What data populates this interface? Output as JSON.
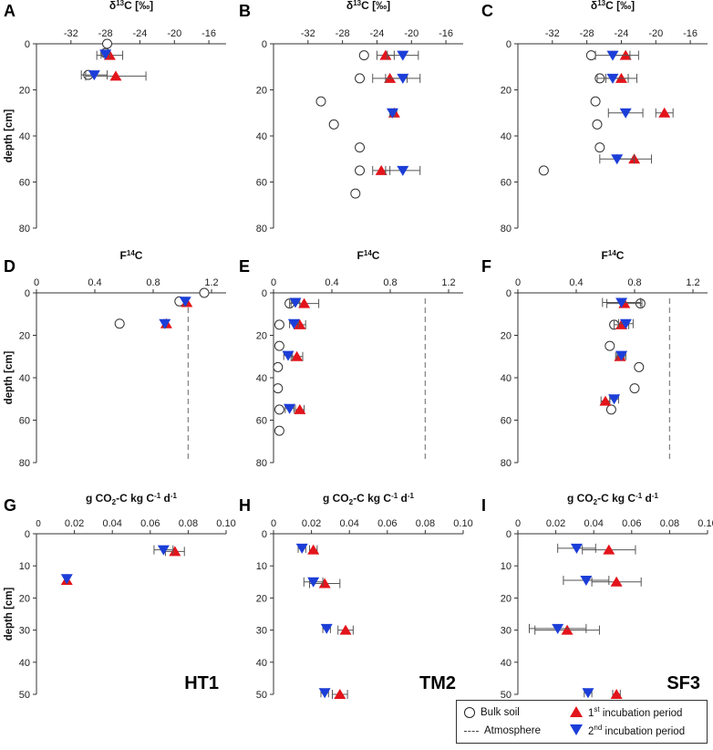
{
  "colors": {
    "bulk_soil": "#ffffff",
    "incubation1": "#e3141b",
    "incubation2": "#1c3ed8",
    "axis": "#333333",
    "atmosphere": "#888888"
  },
  "legend": {
    "bulk_soil": "Bulk soil",
    "atmosphere": "Atmosphere",
    "incubation1_pre": "1",
    "incubation1_sup": "st",
    "incubation1_post": " incubation period",
    "incubation2_pre": "2",
    "incubation2_sup": "nd",
    "incubation2_post": " incubation period"
  },
  "chart_data": [
    {
      "id": "A",
      "panel_label": "A",
      "type": "scatter",
      "title": "δ13C [‰]",
      "title_main": "δ",
      "title_sup": "13",
      "title_rest": "C [‰]",
      "xlim": [
        -36,
        -14
      ],
      "xticks": [
        -32,
        -28,
        -24,
        -20,
        -16
      ],
      "ylim": [
        80,
        0
      ],
      "yticks": [
        0,
        20,
        40,
        60,
        80
      ],
      "ylabel": "depth [cm]",
      "site_label": "",
      "bulk": [
        {
          "x": -27.8,
          "y": 0
        },
        {
          "x": -28.0,
          "y": 4
        },
        {
          "x": -30.0,
          "y": 13.5
        }
      ],
      "inc1": [
        {
          "x": -27.5,
          "y": 5,
          "err": 1.5
        },
        {
          "x": -26.8,
          "y": 14,
          "err": 3.5
        }
      ],
      "inc2": [
        {
          "x": -28.0,
          "y": 4.5,
          "err": 0.5
        },
        {
          "x": -29.3,
          "y": 13.5,
          "err": 1.5
        }
      ]
    },
    {
      "id": "B",
      "panel_label": "B",
      "type": "scatter",
      "title": "δ13C [‰]",
      "title_main": "δ",
      "title_sup": "13",
      "title_rest": "C [‰]",
      "xlim": [
        -36,
        -14
      ],
      "xticks": [
        -32,
        -28,
        -24,
        -20,
        -16
      ],
      "ylim": [
        80,
        0
      ],
      "yticks": [
        0,
        20,
        40,
        60,
        80
      ],
      "ylabel": "",
      "site_label": "",
      "bulk": [
        {
          "x": -25.5,
          "y": 5
        },
        {
          "x": -26.0,
          "y": 15
        },
        {
          "x": -30.5,
          "y": 25
        },
        {
          "x": -29.0,
          "y": 35
        },
        {
          "x": -26.0,
          "y": 45
        },
        {
          "x": -26.0,
          "y": 55
        },
        {
          "x": -26.5,
          "y": 65
        }
      ],
      "inc1": [
        {
          "x": -23.0,
          "y": 5,
          "err": 1
        },
        {
          "x": -22.5,
          "y": 15,
          "err": 2
        },
        {
          "x": -22.0,
          "y": 30,
          "err": 0.3
        },
        {
          "x": -23.5,
          "y": 55,
          "err": 1
        }
      ],
      "inc2": [
        {
          "x": -21.0,
          "y": 5,
          "err": 1.8
        },
        {
          "x": -21.0,
          "y": 15,
          "err": 2
        },
        {
          "x": -22.2,
          "y": 30,
          "err": 0.3
        },
        {
          "x": -21.0,
          "y": 55,
          "err": 2
        }
      ]
    },
    {
      "id": "C",
      "panel_label": "C",
      "type": "scatter",
      "title": "δ13C [‰]",
      "title_main": "δ",
      "title_sup": "13",
      "title_rest": "C [‰]",
      "xlim": [
        -36,
        -14
      ],
      "xticks": [
        -32,
        -28,
        -24,
        -20,
        -16
      ],
      "ylim": [
        80,
        0
      ],
      "yticks": [
        0,
        20,
        40,
        60,
        80
      ],
      "ylabel": "",
      "site_label": "",
      "bulk": [
        {
          "x": -27.5,
          "y": 5
        },
        {
          "x": -26.5,
          "y": 15
        },
        {
          "x": -27.0,
          "y": 25
        },
        {
          "x": -26.8,
          "y": 35
        },
        {
          "x": -26.5,
          "y": 45
        },
        {
          "x": -33.0,
          "y": 55
        }
      ],
      "inc1": [
        {
          "x": -23.5,
          "y": 5,
          "err": 1.5
        },
        {
          "x": -24.0,
          "y": 15,
          "err": 1.8
        },
        {
          "x": -19.0,
          "y": 30,
          "err": 1
        },
        {
          "x": -22.5,
          "y": 50,
          "err": 2
        }
      ],
      "inc2": [
        {
          "x": -25.0,
          "y": 5,
          "err": 2
        },
        {
          "x": -25.0,
          "y": 15,
          "err": 1.8
        },
        {
          "x": -23.5,
          "y": 30,
          "err": 2
        },
        {
          "x": -24.5,
          "y": 50,
          "err": 2
        }
      ]
    },
    {
      "id": "D",
      "panel_label": "D",
      "type": "scatter",
      "title": "F14C",
      "title_main": "F",
      "title_sup": "14",
      "title_rest": "C",
      "xlim": [
        0,
        1.3
      ],
      "xticks": [
        0,
        0.4,
        0.8,
        1.2
      ],
      "ylim": [
        80,
        0
      ],
      "yticks": [
        0,
        20,
        40,
        60,
        80
      ],
      "ylabel": "depth [cm]",
      "atmosphere": 1.04,
      "site_label": "",
      "bulk": [
        {
          "x": 1.15,
          "y": 0
        },
        {
          "x": 0.98,
          "y": 4
        },
        {
          "x": 0.57,
          "y": 14.5
        }
      ],
      "inc1": [
        {
          "x": 1.03,
          "y": 4.5,
          "err": 0.01
        },
        {
          "x": 0.89,
          "y": 14.5,
          "err": 0.01
        }
      ],
      "inc2": [
        {
          "x": 1.02,
          "y": 4,
          "err": 0.01
        },
        {
          "x": 0.88,
          "y": 14.5,
          "err": 0.01
        }
      ]
    },
    {
      "id": "E",
      "panel_label": "E",
      "type": "scatter",
      "title": "F14C",
      "title_main": "F",
      "title_sup": "14",
      "title_rest": "C",
      "xlim": [
        0,
        1.3
      ],
      "xticks": [
        0,
        0.4,
        0.8,
        1.2
      ],
      "ylim": [
        80,
        0
      ],
      "yticks": [
        0,
        20,
        40,
        60,
        80
      ],
      "ylabel": "",
      "atmosphere": 1.04,
      "site_label": "",
      "bulk": [
        {
          "x": 0.11,
          "y": 5
        },
        {
          "x": 0.04,
          "y": 15
        },
        {
          "x": 0.04,
          "y": 25
        },
        {
          "x": 0.03,
          "y": 35
        },
        {
          "x": 0.03,
          "y": 45
        },
        {
          "x": 0.04,
          "y": 55
        },
        {
          "x": 0.04,
          "y": 65
        }
      ],
      "inc1": [
        {
          "x": 0.21,
          "y": 5,
          "err": 0.1
        },
        {
          "x": 0.18,
          "y": 15,
          "err": 0.04
        },
        {
          "x": 0.16,
          "y": 30,
          "err": 0.04
        },
        {
          "x": 0.18,
          "y": 55,
          "err": 0.03
        }
      ],
      "inc2": [
        {
          "x": 0.15,
          "y": 4.5,
          "err": 0.03
        },
        {
          "x": 0.14,
          "y": 14.5,
          "err": 0.03
        },
        {
          "x": 0.1,
          "y": 29.5,
          "err": 0.03
        },
        {
          "x": 0.11,
          "y": 54.5,
          "err": 0.03
        }
      ]
    },
    {
      "id": "F",
      "panel_label": "F",
      "type": "scatter",
      "title": "F14C",
      "title_main": "F",
      "title_sup": "14",
      "title_rest": "C",
      "xlim": [
        0,
        1.3
      ],
      "xticks": [
        0,
        0.4,
        0.8,
        1.2
      ],
      "ylim": [
        80,
        0
      ],
      "yticks": [
        0,
        20,
        40,
        60,
        80
      ],
      "ylabel": "",
      "atmosphere": 1.04,
      "site_label": "",
      "bulk": [
        {
          "x": 0.84,
          "y": 5
        },
        {
          "x": 0.66,
          "y": 15
        },
        {
          "x": 0.63,
          "y": 25
        },
        {
          "x": 0.83,
          "y": 35
        },
        {
          "x": 0.8,
          "y": 45
        },
        {
          "x": 0.64,
          "y": 55
        }
      ],
      "inc1": [
        {
          "x": 0.73,
          "y": 5,
          "err": 0.12
        },
        {
          "x": 0.71,
          "y": 15,
          "err": 0.05
        },
        {
          "x": 0.7,
          "y": 30,
          "err": 0.03
        },
        {
          "x": 0.6,
          "y": 51,
          "err": 0.03
        }
      ],
      "inc2": [
        {
          "x": 0.71,
          "y": 4.5,
          "err": 0.13
        },
        {
          "x": 0.74,
          "y": 14.5,
          "err": 0.05
        },
        {
          "x": 0.71,
          "y": 29.5,
          "err": 0.03
        },
        {
          "x": 0.66,
          "y": 50,
          "err": 0.03
        }
      ]
    },
    {
      "id": "G",
      "panel_label": "G",
      "type": "scatter",
      "title": "g CO2-C kg C-1 d-1",
      "title_main": "g CO",
      "title_sub": "2",
      "title_rest": "-C kg C",
      "title_sup1": "-1",
      "title_rest2": " d",
      "title_sup2": "-1",
      "xlim": [
        0,
        0.1
      ],
      "xticks": [
        0.02,
        0.04,
        0.06,
        0.08,
        0.1
      ],
      "xtick_labels": [
        "0.02",
        "0.04",
        "0.06",
        "0.08",
        "0.10"
      ],
      "zero_tick_label": "0",
      "ylim": [
        50,
        0
      ],
      "yticks": [
        0,
        10,
        20,
        30,
        40,
        50
      ],
      "ylabel": "depth [cm]",
      "site_label": "HT1",
      "bulk": [],
      "inc1": [
        {
          "x": 0.073,
          "y": 5.5,
          "err": 0.005
        },
        {
          "x": 0.016,
          "y": 14.5,
          "err": 0.0005
        }
      ],
      "inc2": [
        {
          "x": 0.067,
          "y": 5,
          "err": 0.005
        },
        {
          "x": 0.016,
          "y": 14,
          "err": 0.0005
        }
      ]
    },
    {
      "id": "H",
      "panel_label": "H",
      "type": "scatter",
      "title": "g CO2-C kg C-1 d-1",
      "title_main": "g CO",
      "title_sub": "2",
      "title_rest": "-C kg C",
      "title_sup1": "-1",
      "title_rest2": " d",
      "title_sup2": "-1",
      "xlim": [
        0,
        0.1
      ],
      "xticks": [
        0,
        0.02,
        0.04,
        0.06,
        0.08,
        0.1
      ],
      "xtick_labels": [
        "0",
        "0.02",
        "0.04",
        "0.06",
        "0.08",
        "0.10"
      ],
      "ylim": [
        50,
        0
      ],
      "yticks": [
        0,
        10,
        20,
        30,
        40,
        50
      ],
      "ylabel": "",
      "site_label": "TM2",
      "bulk": [],
      "inc1": [
        {
          "x": 0.021,
          "y": 5,
          "err": 0.002
        },
        {
          "x": 0.027,
          "y": 15.5,
          "err": 0.008
        },
        {
          "x": 0.038,
          "y": 30,
          "err": 0.004
        },
        {
          "x": 0.035,
          "y": 50,
          "err": 0.004
        }
      ],
      "inc2": [
        {
          "x": 0.015,
          "y": 4.5,
          "err": 0.002
        },
        {
          "x": 0.021,
          "y": 15,
          "err": 0.005
        },
        {
          "x": 0.028,
          "y": 29.5,
          "err": 0.002
        },
        {
          "x": 0.027,
          "y": 49.5,
          "err": 0.002
        }
      ]
    },
    {
      "id": "I",
      "panel_label": "I",
      "type": "scatter",
      "title": "g CO2-C kg C-1 d-1",
      "title_main": "g CO",
      "title_sub": "2",
      "title_rest": "-C kg C",
      "title_sup1": "-1",
      "title_rest2": " d",
      "title_sup2": "-1",
      "xlim": [
        0,
        0.1
      ],
      "xticks": [
        0,
        0.02,
        0.04,
        0.06,
        0.08,
        0.1
      ],
      "xtick_labels": [
        "0",
        "0.02",
        "0.04",
        "0.06",
        "0.08",
        "0.10"
      ],
      "ylim": [
        50,
        0
      ],
      "yticks": [
        0,
        10,
        20,
        30,
        40,
        50
      ],
      "ylabel": "",
      "site_label": "SF3",
      "bulk": [],
      "inc1": [
        {
          "x": 0.048,
          "y": 5,
          "err": 0.014
        },
        {
          "x": 0.052,
          "y": 15,
          "err": 0.013
        },
        {
          "x": 0.026,
          "y": 30,
          "err": 0.017
        },
        {
          "x": 0.052,
          "y": 50,
          "err": 0.002
        }
      ],
      "inc2": [
        {
          "x": 0.031,
          "y": 4.5,
          "err": 0.01
        },
        {
          "x": 0.036,
          "y": 14.5,
          "err": 0.012
        },
        {
          "x": 0.021,
          "y": 29.5,
          "err": 0.015
        },
        {
          "x": 0.037,
          "y": 49.5,
          "err": 0.002
        }
      ]
    }
  ]
}
